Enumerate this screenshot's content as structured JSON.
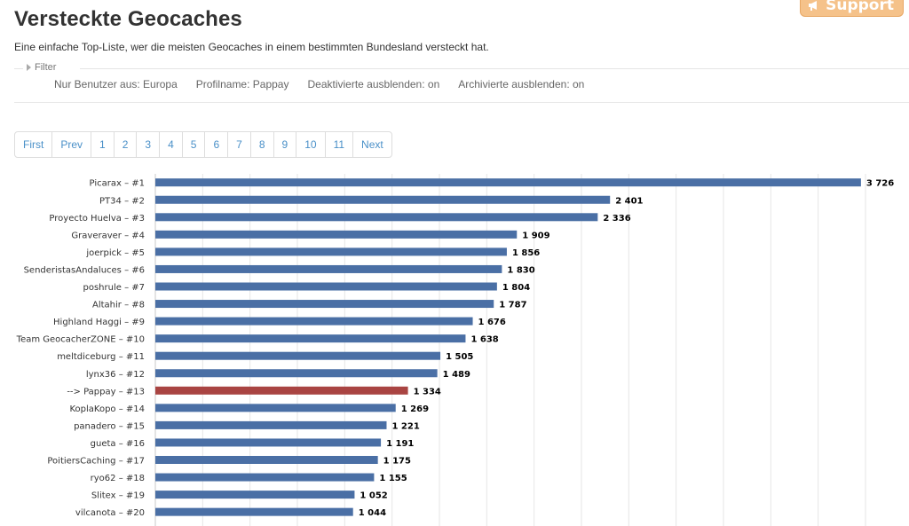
{
  "header": {
    "title": "Versteckte Geocaches",
    "subtitle": "Eine einfache Top-Liste, wer die meisten Geocaches in einem bestimmten Bundesland versteckt hat.",
    "support_label": "Support"
  },
  "filter": {
    "toggle_label": "Filter",
    "values": [
      "Nur Benutzer aus: Europa",
      "Profilname: Pappay",
      "Deaktivierte ausblenden: on",
      "Archivierte ausblenden: on"
    ]
  },
  "pagination": [
    "First",
    "Prev",
    "1",
    "2",
    "3",
    "4",
    "5",
    "6",
    "7",
    "8",
    "9",
    "10",
    "11",
    "Next"
  ],
  "colors": {
    "bar": "#4a6fa5",
    "highlight": "#a94442",
    "grid": "#e6e6e6"
  },
  "chart_data": {
    "type": "bar",
    "orientation": "horizontal",
    "categories": [
      "Picarax – #1",
      "PT34 – #2",
      "Proyecto Huelva – #3",
      "Graveraver – #4",
      "joerpick – #5",
      "SenderistasAndaluces – #6",
      "poshrule – #7",
      "Altahir – #8",
      "Highland Haggi – #9",
      "Team GeocacherZONE – #10",
      "meltdiceburg – #11",
      "lynx36 – #12",
      "--> Pappay – #13",
      "KoplaKopo – #14",
      "panadero – #15",
      "gueta – #16",
      "PoitiersCaching – #17",
      "ryo62 – #18",
      "Slitex – #19",
      "vilcanota – #20"
    ],
    "values": [
      3726,
      2401,
      2336,
      1909,
      1856,
      1830,
      1804,
      1787,
      1676,
      1638,
      1505,
      1489,
      1334,
      1269,
      1221,
      1191,
      1175,
      1155,
      1052,
      1044
    ],
    "value_labels": [
      "3 726",
      "2 401",
      "2 336",
      "1 909",
      "1 856",
      "1 830",
      "1 804",
      "1 787",
      "1 676",
      "1 638",
      "1 505",
      "1 489",
      "1 334",
      "1 269",
      "1 221",
      "1 191",
      "1 175",
      "1 155",
      "1 052",
      "1 044"
    ],
    "highlight_index": 12,
    "xlim": [
      0,
      3750
    ],
    "grid": true,
    "title": "",
    "xlabel": "",
    "ylabel": ""
  }
}
